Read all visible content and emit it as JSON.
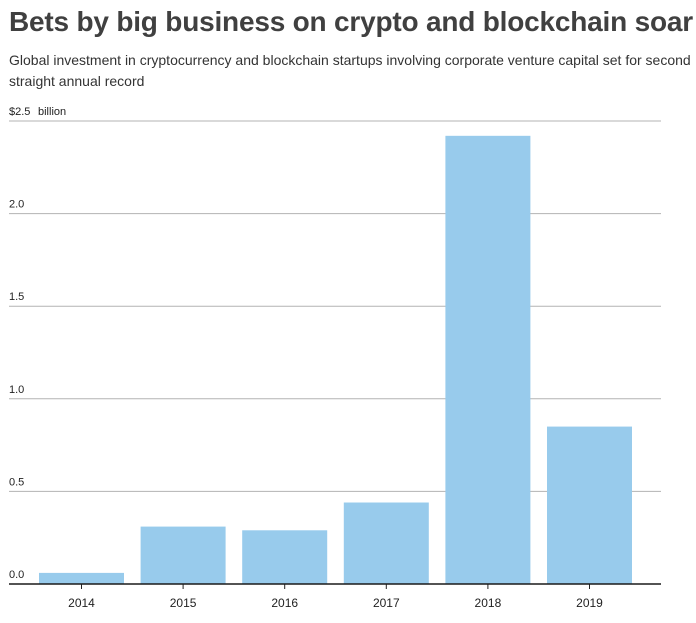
{
  "chart_data": {
    "type": "bar",
    "title": "Bets by big business on crypto and blockchain soar",
    "subtitle": "Global investment in cryptocurrency and blockchain startups involving corporate venture capital set for second straight annual record",
    "unit_label": "billion",
    "categories": [
      "2014",
      "2015",
      "2016",
      "2017",
      "2018",
      "2019"
    ],
    "values": [
      0.06,
      0.31,
      0.29,
      0.44,
      2.42,
      0.85
    ],
    "ylim": [
      0,
      2.5
    ],
    "yticks": [
      0,
      0.5,
      1.0,
      1.5,
      2.0,
      2.5
    ],
    "ytick_labels": [
      "0.0",
      "0.5",
      "1.0",
      "1.5",
      "2.0",
      "$2.5"
    ],
    "bar_color": "#98cbec",
    "grid": true
  }
}
